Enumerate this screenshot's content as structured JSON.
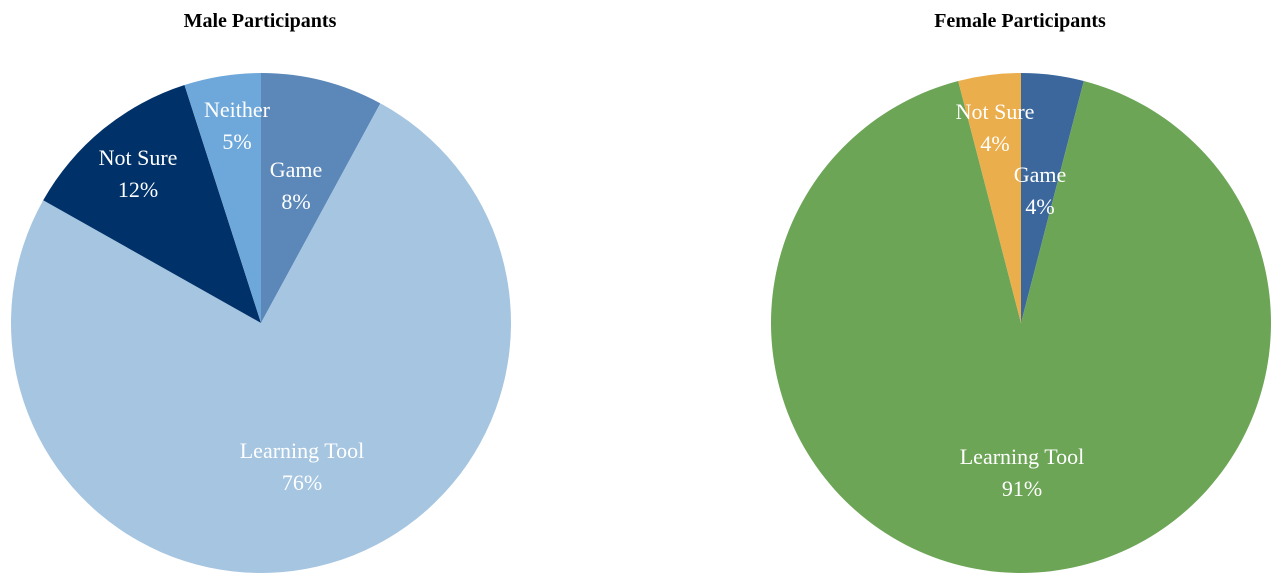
{
  "chart_data": [
    {
      "type": "pie",
      "title": "Male Participants",
      "labels": [
        "Game",
        "Learning Tool",
        "Not Sure",
        "Neither"
      ],
      "values": [
        8,
        76,
        12,
        5
      ],
      "value_labels": [
        "8%",
        "76%",
        "12%",
        "5%"
      ],
      "colors": [
        "#5b87b9",
        "#a5c5e1",
        "#003169",
        "#6ea8da"
      ],
      "start": "12 o'clock",
      "direction": "clockwise"
    },
    {
      "type": "pie",
      "title": "Female Participants",
      "labels": [
        "Game",
        "Learning Tool",
        "Not Sure"
      ],
      "values": [
        4,
        91,
        4
      ],
      "value_labels": [
        "4%",
        "91%",
        "4%"
      ],
      "colors": [
        "#3b679d",
        "#6da557",
        "#ebae4d"
      ],
      "start": "12 o'clock",
      "direction": "clockwise"
    }
  ]
}
